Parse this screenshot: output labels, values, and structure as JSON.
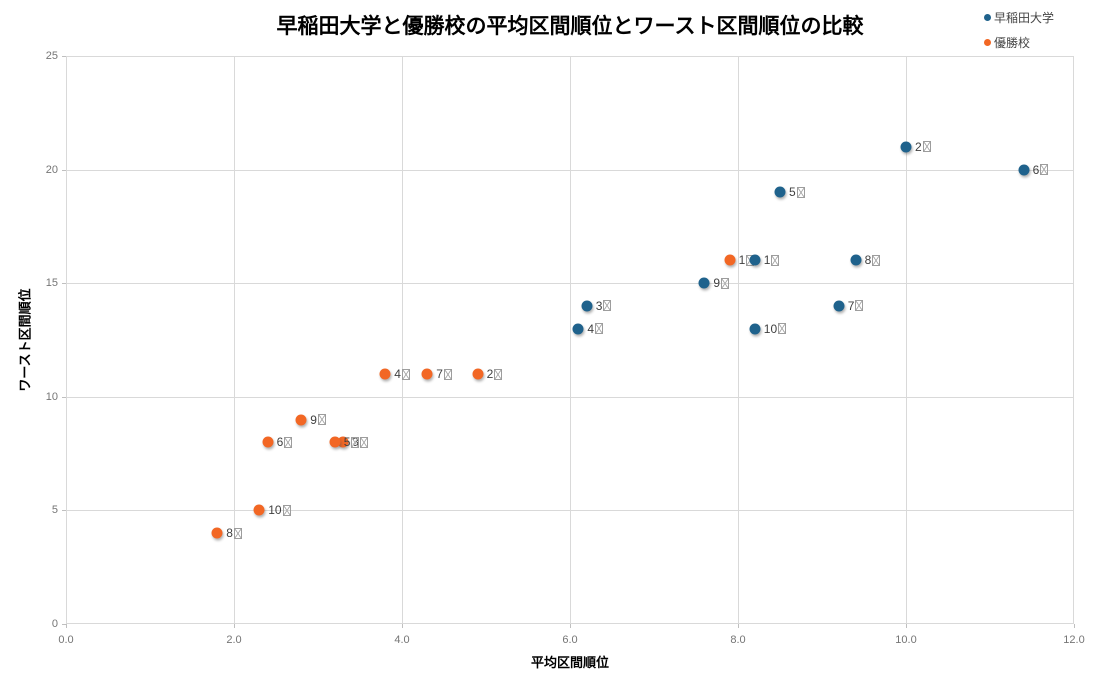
{
  "chart_data": {
    "type": "scatter",
    "title": "早稲田大学と優勝校の平均区間順位とワースト区間順位の比較",
    "xlabel": "平均区間順位",
    "ylabel": "ワースト区間順位",
    "xlim": [
      0.0,
      12.0
    ],
    "ylim": [
      0,
      25
    ],
    "x_ticks": [
      "0.0",
      "2.0",
      "4.0",
      "6.0",
      "8.0",
      "10.0",
      "12.0"
    ],
    "y_ticks": [
      "0",
      "5",
      "10",
      "15",
      "20",
      "25"
    ],
    "grid": true,
    "legend_position": "top-right",
    "missing_glyph_char": "区",
    "missing_glyph_note": "区 in point annotation labels renders as a tofu (missing-glyph) box in the original image",
    "series": [
      {
        "name": "早稲田大学",
        "color": "#1f628c",
        "points": [
          {
            "label": "1区",
            "x": 8.2,
            "y": 16
          },
          {
            "label": "2区",
            "x": 10.0,
            "y": 21
          },
          {
            "label": "3区",
            "x": 6.2,
            "y": 14
          },
          {
            "label": "4区",
            "x": 6.1,
            "y": 13
          },
          {
            "label": "5区",
            "x": 8.5,
            "y": 19
          },
          {
            "label": "6区",
            "x": 11.4,
            "y": 20
          },
          {
            "label": "7区",
            "x": 9.2,
            "y": 14
          },
          {
            "label": "8区",
            "x": 9.4,
            "y": 16
          },
          {
            "label": "9区",
            "x": 7.6,
            "y": 15
          },
          {
            "label": "10区",
            "x": 8.2,
            "y": 13
          }
        ]
      },
      {
        "name": "優勝校",
        "color": "#f26724",
        "points": [
          {
            "label": "1区",
            "x": 7.9,
            "y": 16
          },
          {
            "label": "2区",
            "x": 4.9,
            "y": 11
          },
          {
            "label": "3区",
            "x": 3.3,
            "y": 8
          },
          {
            "label": "4区",
            "x": 3.8,
            "y": 11
          },
          {
            "label": "5区",
            "x": 3.2,
            "y": 8
          },
          {
            "label": "6区",
            "x": 2.4,
            "y": 8
          },
          {
            "label": "7区",
            "x": 4.3,
            "y": 11
          },
          {
            "label": "8区",
            "x": 1.8,
            "y": 4
          },
          {
            "label": "9区",
            "x": 2.8,
            "y": 9
          },
          {
            "label": "10区",
            "x": 2.3,
            "y": 5
          }
        ]
      }
    ]
  },
  "colors": {
    "waseda_series": "#1f628c",
    "champion_series": "#f26724",
    "gridline": "#d9d9d9",
    "tick_label": "#757575",
    "annotation_text": "#3f3f3f",
    "background": "#ffffff"
  }
}
